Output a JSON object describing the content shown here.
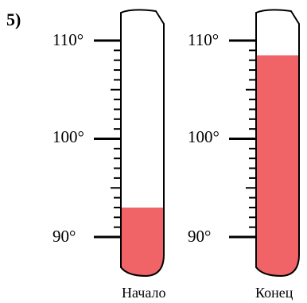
{
  "problem_number": "5)",
  "scale": {
    "min": 90,
    "max": 110,
    "labels": [
      "110°",
      "100°",
      "90°"
    ]
  },
  "thermometers": [
    {
      "caption": "Начало",
      "level": 93
    },
    {
      "caption": "Конец",
      "level": 108.5
    }
  ],
  "colors": {
    "liquid": "#f06468",
    "outline": "#000000",
    "ticks": "#000000"
  }
}
